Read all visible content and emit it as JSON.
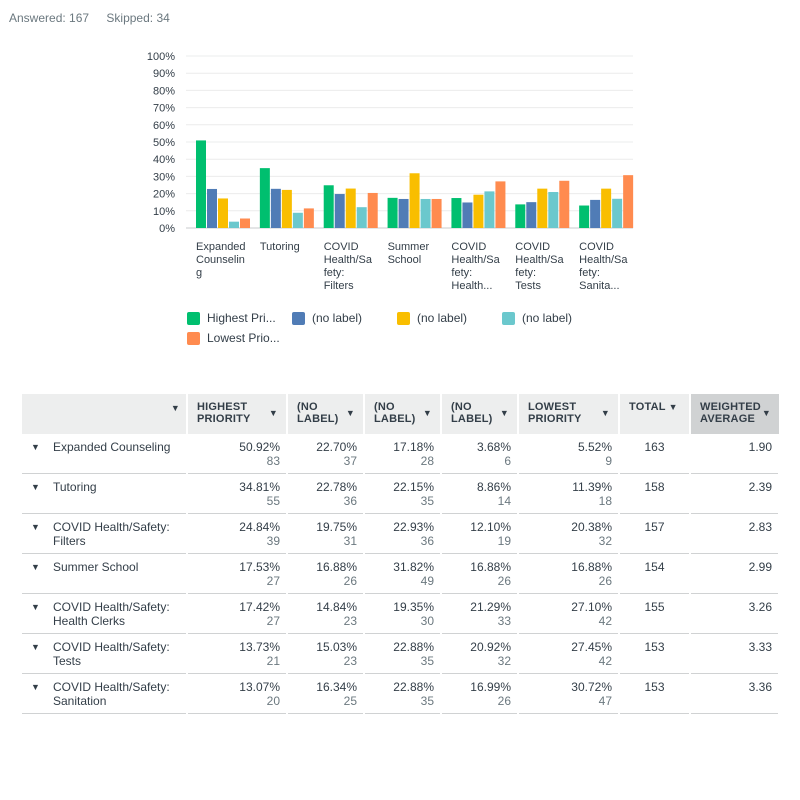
{
  "summary": {
    "answered": "Answered: 167",
    "skipped": "Skipped: 34"
  },
  "colors": {
    "highest": "#00bf6f",
    "label2": "#507cb6",
    "label3": "#f9be00",
    "label4": "#6bc8cd",
    "lowest": "#ff8b4f"
  },
  "chart_data": {
    "type": "bar",
    "y_ticks": [
      "100%",
      "90%",
      "80%",
      "70%",
      "60%",
      "50%",
      "40%",
      "30%",
      "20%",
      "10%",
      "0%"
    ],
    "ylim": [
      0,
      100
    ],
    "categories": [
      [
        "Expanded",
        "Counselin",
        "g"
      ],
      [
        "Tutoring"
      ],
      [
        "COVID",
        "Health/Sa",
        "fety:",
        "Filters"
      ],
      [
        "Summer",
        "School"
      ],
      [
        "COVID",
        "Health/Sa",
        "fety:",
        "Health..."
      ],
      [
        "COVID",
        "Health/Sa",
        "fety:",
        "Tests"
      ],
      [
        "COVID",
        "Health/Sa",
        "fety:",
        "Sanita..."
      ]
    ],
    "series": [
      {
        "name": "Highest Pri...",
        "color": "#00bf6f",
        "values": [
          50.92,
          34.81,
          24.84,
          17.53,
          17.42,
          13.73,
          13.07
        ]
      },
      {
        "name": "(no label)",
        "color": "#507cb6",
        "values": [
          22.7,
          22.78,
          19.75,
          16.88,
          14.84,
          15.03,
          16.34
        ]
      },
      {
        "name": "(no label)",
        "color": "#f9be00",
        "values": [
          17.18,
          22.15,
          22.93,
          31.82,
          19.35,
          22.88,
          22.88
        ]
      },
      {
        "name": "(no label)",
        "color": "#6bc8cd",
        "values": [
          3.68,
          8.86,
          12.1,
          16.88,
          21.29,
          20.92,
          16.99
        ]
      },
      {
        "name": "Lowest Prio...",
        "color": "#ff8b4f",
        "values": [
          5.52,
          11.39,
          20.38,
          16.88,
          27.1,
          27.45,
          30.72
        ]
      }
    ],
    "grid": true,
    "legend_position": "bottom"
  },
  "legend": [
    {
      "label": "Highest Pri...",
      "color": "#00bf6f"
    },
    {
      "label": "(no label)",
      "color": "#507cb6"
    },
    {
      "label": "(no label)",
      "color": "#f9be00"
    },
    {
      "label": "(no label)",
      "color": "#6bc8cd"
    },
    {
      "label": "Lowest Prio...",
      "color": "#ff8b4f"
    }
  ],
  "table": {
    "headers": {
      "col1_line1": "HIGHEST",
      "col1_line2": "PRIORITY",
      "col2_line1": "(NO",
      "col2_line2": "LABEL)",
      "col3_line1": "(NO",
      "col3_line2": "LABEL)",
      "col4_line1": "(NO",
      "col4_line2": "LABEL)",
      "col5_line1": "LOWEST",
      "col5_line2": "PRIORITY",
      "total": "TOTAL",
      "wavg_line1": "WEIGHTED",
      "wavg_line2": "AVERAGE"
    },
    "rows": [
      {
        "label": [
          "Expanded Counseling"
        ],
        "cells": [
          [
            "50.92%",
            "83"
          ],
          [
            "22.70%",
            "37"
          ],
          [
            "17.18%",
            "28"
          ],
          [
            "3.68%",
            "6"
          ],
          [
            "5.52%",
            "9"
          ]
        ],
        "total": "163",
        "wavg": "1.90"
      },
      {
        "label": [
          "Tutoring"
        ],
        "cells": [
          [
            "34.81%",
            "55"
          ],
          [
            "22.78%",
            "36"
          ],
          [
            "22.15%",
            "35"
          ],
          [
            "8.86%",
            "14"
          ],
          [
            "11.39%",
            "18"
          ]
        ],
        "total": "158",
        "wavg": "2.39"
      },
      {
        "label": [
          "COVID Health/Safety:",
          "Filters"
        ],
        "cells": [
          [
            "24.84%",
            "39"
          ],
          [
            "19.75%",
            "31"
          ],
          [
            "22.93%",
            "36"
          ],
          [
            "12.10%",
            "19"
          ],
          [
            "20.38%",
            "32"
          ]
        ],
        "total": "157",
        "wavg": "2.83"
      },
      {
        "label": [
          "Summer School"
        ],
        "cells": [
          [
            "17.53%",
            "27"
          ],
          [
            "16.88%",
            "26"
          ],
          [
            "31.82%",
            "49"
          ],
          [
            "16.88%",
            "26"
          ],
          [
            "16.88%",
            "26"
          ]
        ],
        "total": "154",
        "wavg": "2.99"
      },
      {
        "label": [
          "COVID Health/Safety:",
          "Health Clerks"
        ],
        "cells": [
          [
            "17.42%",
            "27"
          ],
          [
            "14.84%",
            "23"
          ],
          [
            "19.35%",
            "30"
          ],
          [
            "21.29%",
            "33"
          ],
          [
            "27.10%",
            "42"
          ]
        ],
        "total": "155",
        "wavg": "3.26"
      },
      {
        "label": [
          "COVID Health/Safety:",
          "Tests"
        ],
        "cells": [
          [
            "13.73%",
            "21"
          ],
          [
            "15.03%",
            "23"
          ],
          [
            "22.88%",
            "35"
          ],
          [
            "20.92%",
            "32"
          ],
          [
            "27.45%",
            "42"
          ]
        ],
        "total": "153",
        "wavg": "3.33"
      },
      {
        "label": [
          "COVID Health/Safety:",
          "Sanitation"
        ],
        "cells": [
          [
            "13.07%",
            "20"
          ],
          [
            "16.34%",
            "25"
          ],
          [
            "22.88%",
            "35"
          ],
          [
            "16.99%",
            "26"
          ],
          [
            "30.72%",
            "47"
          ]
        ],
        "total": "153",
        "wavg": "3.36"
      }
    ]
  }
}
